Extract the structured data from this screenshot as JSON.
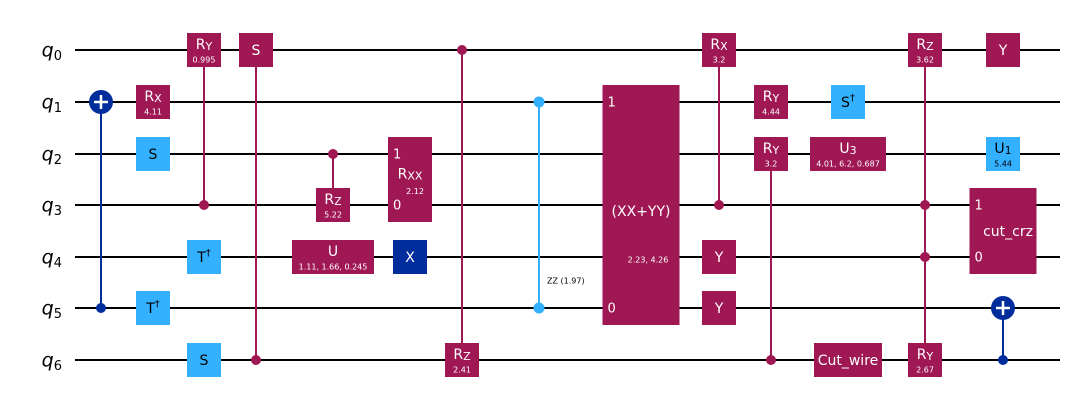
{
  "colors": {
    "magenta": "#9f1853",
    "light_blue": "#33b1ff",
    "dark_blue": "#002d9c",
    "wire": "#000000"
  },
  "qubits": [
    "q",
    "q",
    "q",
    "q",
    "q",
    "q",
    "q"
  ],
  "qubit_indices": [
    "0",
    "1",
    "2",
    "3",
    "4",
    "5",
    "6"
  ],
  "gates": [
    {
      "type": "cnot",
      "control": 5,
      "target": 1,
      "color": "dark_blue"
    },
    {
      "type": "box",
      "qubit": 1,
      "label": "R",
      "sub": "X",
      "param": "4.11",
      "color": "magenta"
    },
    {
      "type": "box",
      "qubit": 2,
      "label": "S",
      "color": "light_blue"
    },
    {
      "type": "box",
      "qubit": 5,
      "label": "T",
      "sup": "†",
      "color": "light_blue"
    },
    {
      "type": "cbox",
      "control": 3,
      "qubit": 0,
      "label": "R",
      "sub": "Y",
      "param": "0.995",
      "color": "magenta"
    },
    {
      "type": "box",
      "qubit": 4,
      "label": "T",
      "sup": "†",
      "color": "light_blue"
    },
    {
      "type": "box",
      "qubit": 6,
      "label": "S",
      "color": "light_blue"
    },
    {
      "type": "cbox",
      "control": 6,
      "qubit": 0,
      "label": "S",
      "color": "magenta"
    },
    {
      "type": "cbox",
      "control": 2,
      "qubit": 3,
      "label": "R",
      "sub": "Z",
      "param": "5.22",
      "color": "magenta"
    },
    {
      "type": "box",
      "qubit": 4,
      "label": "U",
      "param": "1.11, 1.66, 0.245",
      "color": "magenta"
    },
    {
      "type": "multi",
      "qubits": [
        2,
        3
      ],
      "ports": [
        "1",
        "0"
      ],
      "label": "R",
      "sub": "XX",
      "param": "2.12",
      "color": "magenta"
    },
    {
      "type": "box",
      "qubit": 4,
      "label": "X",
      "color": "dark_blue"
    },
    {
      "type": "cbox",
      "control": 0,
      "qubit": 6,
      "label": "R",
      "sub": "Z",
      "param": "2.41",
      "color": "magenta"
    },
    {
      "type": "zz",
      "qubits": [
        1,
        5
      ],
      "label": "ZZ (1.97)",
      "color": "light_blue"
    },
    {
      "type": "multi",
      "qubits": [
        1,
        5
      ],
      "ports": [
        "1",
        "0"
      ],
      "label": "(XX+YY)",
      "param": "2.23, 4.26",
      "color": "magenta"
    },
    {
      "type": "cbox",
      "control": 3,
      "qubit": 0,
      "label": "R",
      "sub": "X",
      "param": "3.2",
      "color": "magenta"
    },
    {
      "type": "box",
      "qubit": 4,
      "label": "Y",
      "color": "magenta"
    },
    {
      "type": "box",
      "qubit": 5,
      "label": "Y",
      "color": "magenta"
    },
    {
      "type": "box",
      "qubit": 1,
      "label": "R",
      "sub": "Y",
      "param": "4.44",
      "color": "magenta"
    },
    {
      "type": "cbox",
      "control": 6,
      "qubit": 2,
      "label": "R",
      "sub": "Y",
      "param": "3.2",
      "color": "magenta"
    },
    {
      "type": "box",
      "qubit": 1,
      "label": "S",
      "sup": "†",
      "color": "light_blue"
    },
    {
      "type": "box",
      "qubit": 2,
      "label": "U",
      "sub": "3",
      "param": "4.01, 6.2, 0.687",
      "color": "magenta"
    },
    {
      "type": "box",
      "qubit": 6,
      "label": "Cut_wire",
      "color": "magenta"
    },
    {
      "type": "cbox2",
      "controls": [
        3,
        4
      ],
      "qubit": 0,
      "label": "R",
      "sub": "Z",
      "param": "3.62",
      "color": "magenta"
    },
    {
      "type": "box",
      "qubit": 6,
      "label": "R",
      "sub": "Y",
      "param": "2.67",
      "color": "magenta",
      "linkUp": 4
    },
    {
      "type": "box",
      "qubit": 0,
      "label": "Y",
      "color": "magenta"
    },
    {
      "type": "box",
      "qubit": 2,
      "label": "U",
      "sub": "1",
      "param": "5.44",
      "color": "light_blue"
    },
    {
      "type": "multi",
      "qubits": [
        3,
        4
      ],
      "ports": [
        "1",
        "0"
      ],
      "label": "cut_crz",
      "color": "magenta"
    },
    {
      "type": "cnot",
      "control": 6,
      "target": 5,
      "color": "dark_blue"
    }
  ]
}
